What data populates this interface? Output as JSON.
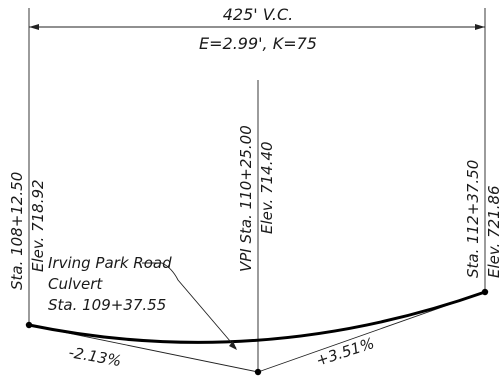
{
  "vertical_curve": {
    "length_label": "425' V.C.",
    "e_k_label": "E=2.99', K=75"
  },
  "stations": {
    "pvc_station": "Sta. 108+12.50",
    "pvc_elev": "Elev. 718.92",
    "vpi_station": "VPI Sta. 110+25.00",
    "vpi_elev": "Elev. 714.40",
    "pvt_station": "Sta. 112+37.50",
    "pvt_elev": "Elev. 721.86"
  },
  "culvert": {
    "line1": "Irving Park Road",
    "line2": "Culvert",
    "line3": "Sta. 109+37.55"
  },
  "grades": {
    "left": "-2.13%",
    "right": "+3.51%"
  }
}
